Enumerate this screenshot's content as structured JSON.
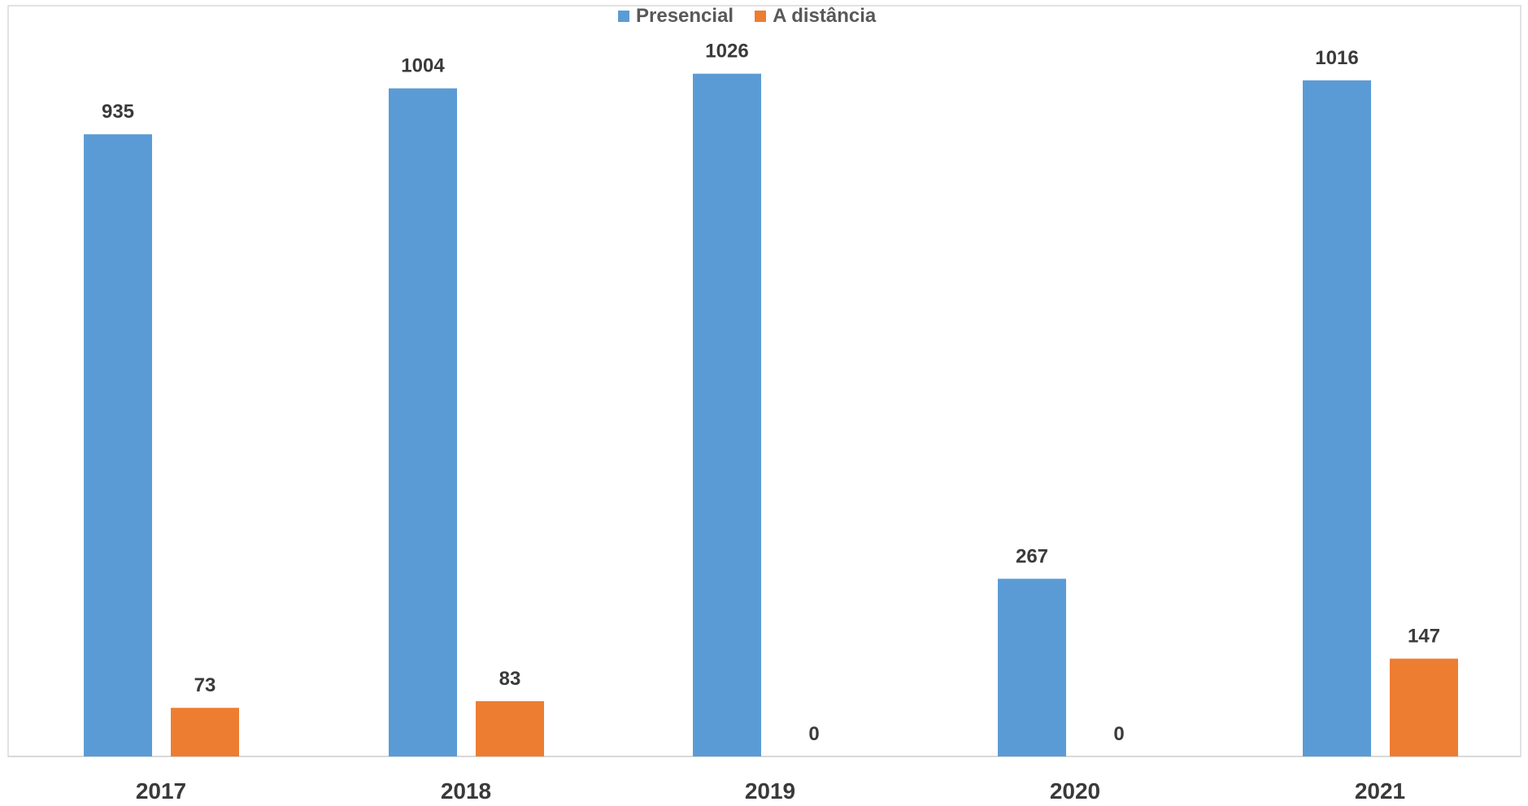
{
  "chart_data": {
    "type": "bar",
    "categories": [
      "2017",
      "2018",
      "2019",
      "2020",
      "2021"
    ],
    "series": [
      {
        "name": "Presencial",
        "values": [
          935,
          1004,
          1026,
          267,
          1016
        ],
        "color": "#5b9bd5"
      },
      {
        "name": "A distância",
        "values": [
          73,
          83,
          0,
          0,
          147
        ],
        "color": "#ed7d31"
      }
    ],
    "ylim": [
      0,
      1127
    ],
    "grid": false,
    "legend_position": "top-center",
    "data_labels": true,
    "axis_color": "#d9d9d9"
  }
}
